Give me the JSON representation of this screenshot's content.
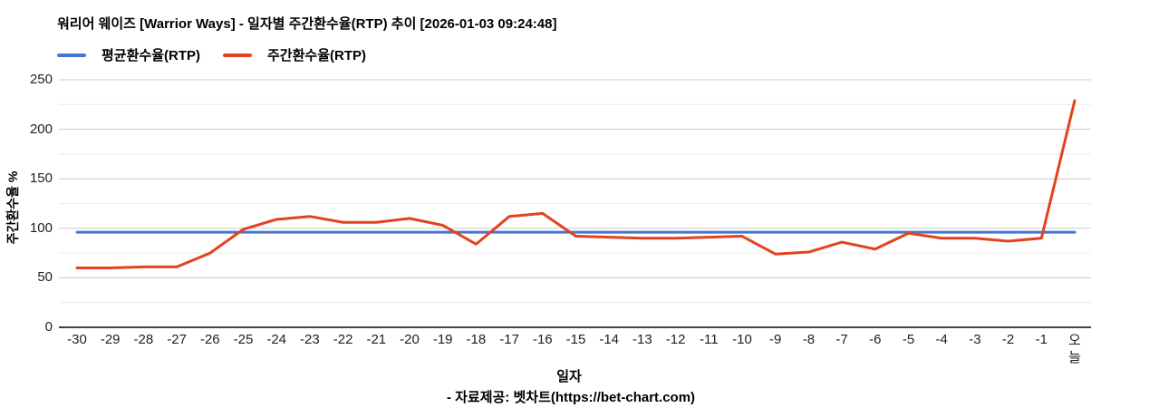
{
  "title": "워리어 웨이즈 [Warrior Ways] - 일자별 주간환수율(RTP) 추이 [2026-01-03 09:24:48]",
  "legend": [
    {
      "label": "평균환수율(RTP)",
      "color": "#4575d5"
    },
    {
      "label": "주간환수율(RTP)",
      "color": "#e2431e"
    }
  ],
  "footer": "- 자료제공: 벳차트(https://bet-chart.com)",
  "colors": {
    "grid_major": "#cccccc",
    "grid_minor": "#ebebeb",
    "axis": "#424242",
    "tick_text": "#212121"
  },
  "chart_data": {
    "type": "line",
    "title": "워리어 웨이즈 [Warrior Ways] - 일자별 주간환수율(RTP) 추이 [2026-01-03 09:24:48]",
    "xlabel": "일자",
    "ylabel": "주간환수율 %",
    "ylim": [
      0,
      250
    ],
    "yticks": [
      0,
      50,
      100,
      150,
      200,
      250
    ],
    "minor_grid_step": 25,
    "grid": "horizontal",
    "legend_position": "top-left",
    "categories": [
      "-30",
      "-29",
      "-28",
      "-27",
      "-26",
      "-25",
      "-24",
      "-23",
      "-22",
      "-21",
      "-20",
      "-19",
      "-18",
      "-17",
      "-16",
      "-15",
      "-14",
      "-13",
      "-12",
      "-11",
      "-10",
      "-9",
      "-8",
      "-7",
      "-6",
      "-5",
      "-4",
      "-3",
      "-2",
      "-1",
      "오늘"
    ],
    "series": [
      {
        "name": "평균환수율(RTP)",
        "color": "#4575d5",
        "values": [
          96,
          96,
          96,
          96,
          96,
          96,
          96,
          96,
          96,
          96,
          96,
          96,
          96,
          96,
          96,
          96,
          96,
          96,
          96,
          96,
          96,
          96,
          96,
          96,
          96,
          96,
          96,
          96,
          96,
          96,
          96
        ]
      },
      {
        "name": "주간환수율(RTP)",
        "color": "#e2431e",
        "values": [
          60,
          60,
          61,
          61,
          75,
          99,
          109,
          112,
          106,
          106,
          110,
          103,
          84,
          112,
          115,
          92,
          91,
          90,
          90,
          91,
          92,
          74,
          76,
          86,
          79,
          95,
          90,
          90,
          87,
          90,
          229
        ]
      }
    ]
  }
}
